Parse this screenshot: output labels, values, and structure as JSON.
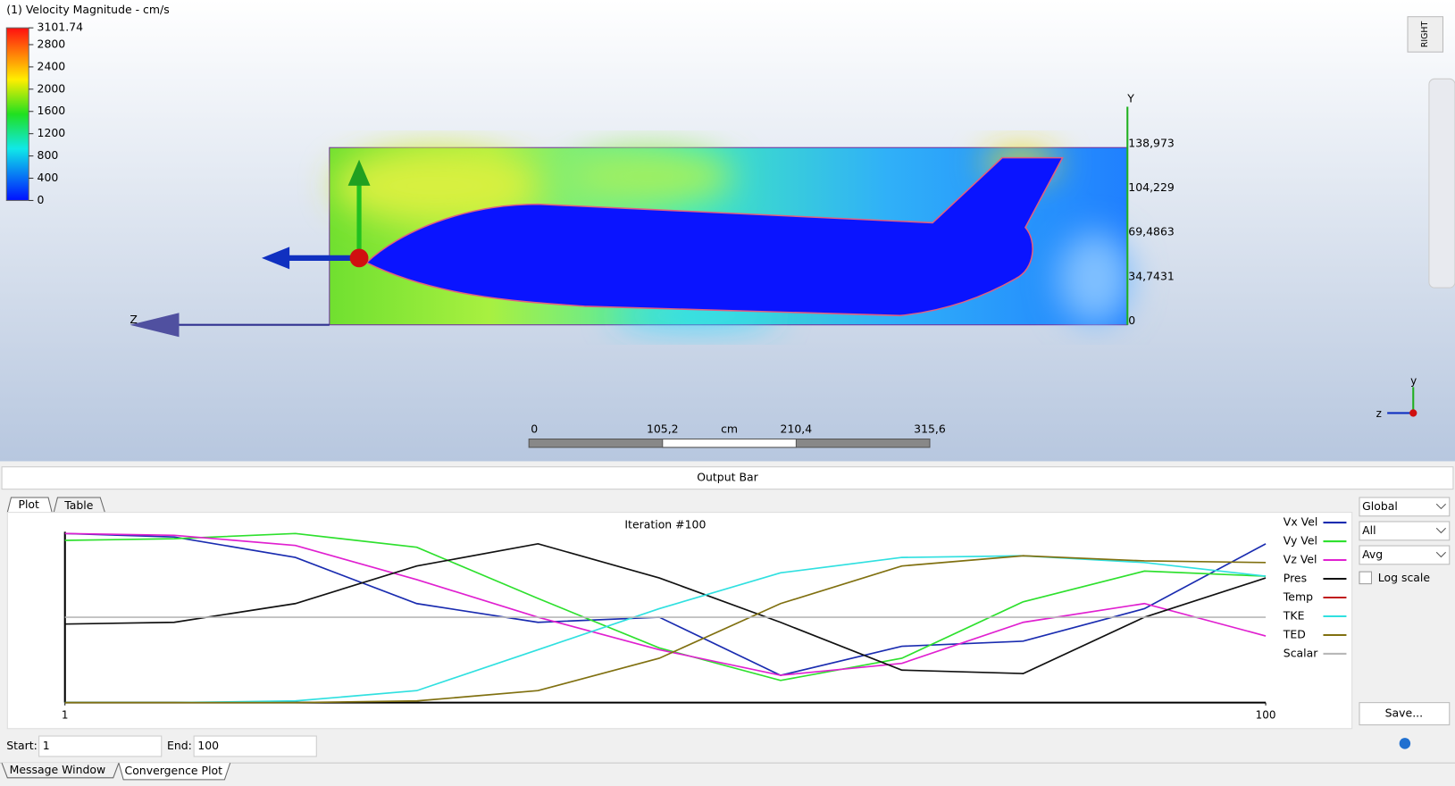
{
  "viewport": {
    "legend_title": "(1) Velocity Magnitude - cm/s",
    "legend_ticks": [
      3101.74,
      2800,
      2400,
      2000,
      1600,
      1200,
      800,
      400,
      0
    ],
    "axis_y": "Y",
    "axis_z": "Z",
    "y_axis_labels": [
      "138,973",
      "104,229",
      "69,4863",
      "34,7431",
      "0"
    ],
    "scale_labels": [
      "0",
      "105,2",
      "cm",
      "210,4",
      "315,6"
    ],
    "view_cube": "RIGHT",
    "triad_y": "y",
    "triad_z": "z"
  },
  "output_bar": "Output Bar",
  "tabs": [
    "Plot",
    "Table"
  ],
  "chart_data": {
    "type": "line",
    "title": "Iteration #100",
    "x": [
      1,
      10,
      20,
      30,
      40,
      50,
      60,
      70,
      80,
      90,
      100
    ],
    "xlim": [
      1,
      100
    ],
    "xticks": [
      1,
      100
    ],
    "ylim": [
      0,
      1
    ],
    "series": [
      {
        "name": "Vx Vel",
        "color": "#1a2cb0",
        "values": [
          0.99,
          0.97,
          0.85,
          0.58,
          0.47,
          0.5,
          0.16,
          0.33,
          0.36,
          0.55,
          0.93
        ]
      },
      {
        "name": "Vy Vel",
        "color": "#2ee02e",
        "values": [
          0.95,
          0.96,
          0.99,
          0.91,
          0.61,
          0.32,
          0.13,
          0.26,
          0.59,
          0.77,
          0.74
        ]
      },
      {
        "name": "Vz Vel",
        "color": "#e020d0",
        "values": [
          0.99,
          0.98,
          0.92,
          0.72,
          0.5,
          0.31,
          0.16,
          0.23,
          0.47,
          0.58,
          0.39
        ]
      },
      {
        "name": "Pres",
        "color": "#111111",
        "values": [
          0.46,
          0.47,
          0.58,
          0.8,
          0.93,
          0.73,
          0.47,
          0.19,
          0.17,
          0.5,
          0.73
        ]
      },
      {
        "name": "Temp",
        "color": "#c01818",
        "values": [
          null,
          null,
          null,
          null,
          null,
          null,
          null,
          null,
          null,
          null,
          null
        ]
      },
      {
        "name": "TKE",
        "color": "#30e0e0",
        "values": [
          0,
          0,
          0.01,
          0.07,
          0.31,
          0.55,
          0.76,
          0.85,
          0.86,
          0.82,
          0.74
        ]
      },
      {
        "name": "TED",
        "color": "#807010",
        "values": [
          0,
          0,
          0,
          0.01,
          0.07,
          0.26,
          0.58,
          0.8,
          0.86,
          0.83,
          0.82
        ]
      },
      {
        "name": "Scalar",
        "color": "#b8b8b8",
        "values": [
          0.5,
          0.5,
          0.5,
          0.5,
          0.5,
          0.5,
          0.5,
          0.5,
          0.5,
          0.5,
          0.5
        ]
      }
    ]
  },
  "controls": {
    "dropdowns": [
      "Global",
      "All",
      "Avg"
    ],
    "log_scale": "Log scale",
    "save": "Save...",
    "start_label": "Start:",
    "start_value": "1",
    "end_label": "End:",
    "end_value": "100"
  },
  "bottom_tabs": [
    "Message Window",
    "Convergence Plot"
  ]
}
